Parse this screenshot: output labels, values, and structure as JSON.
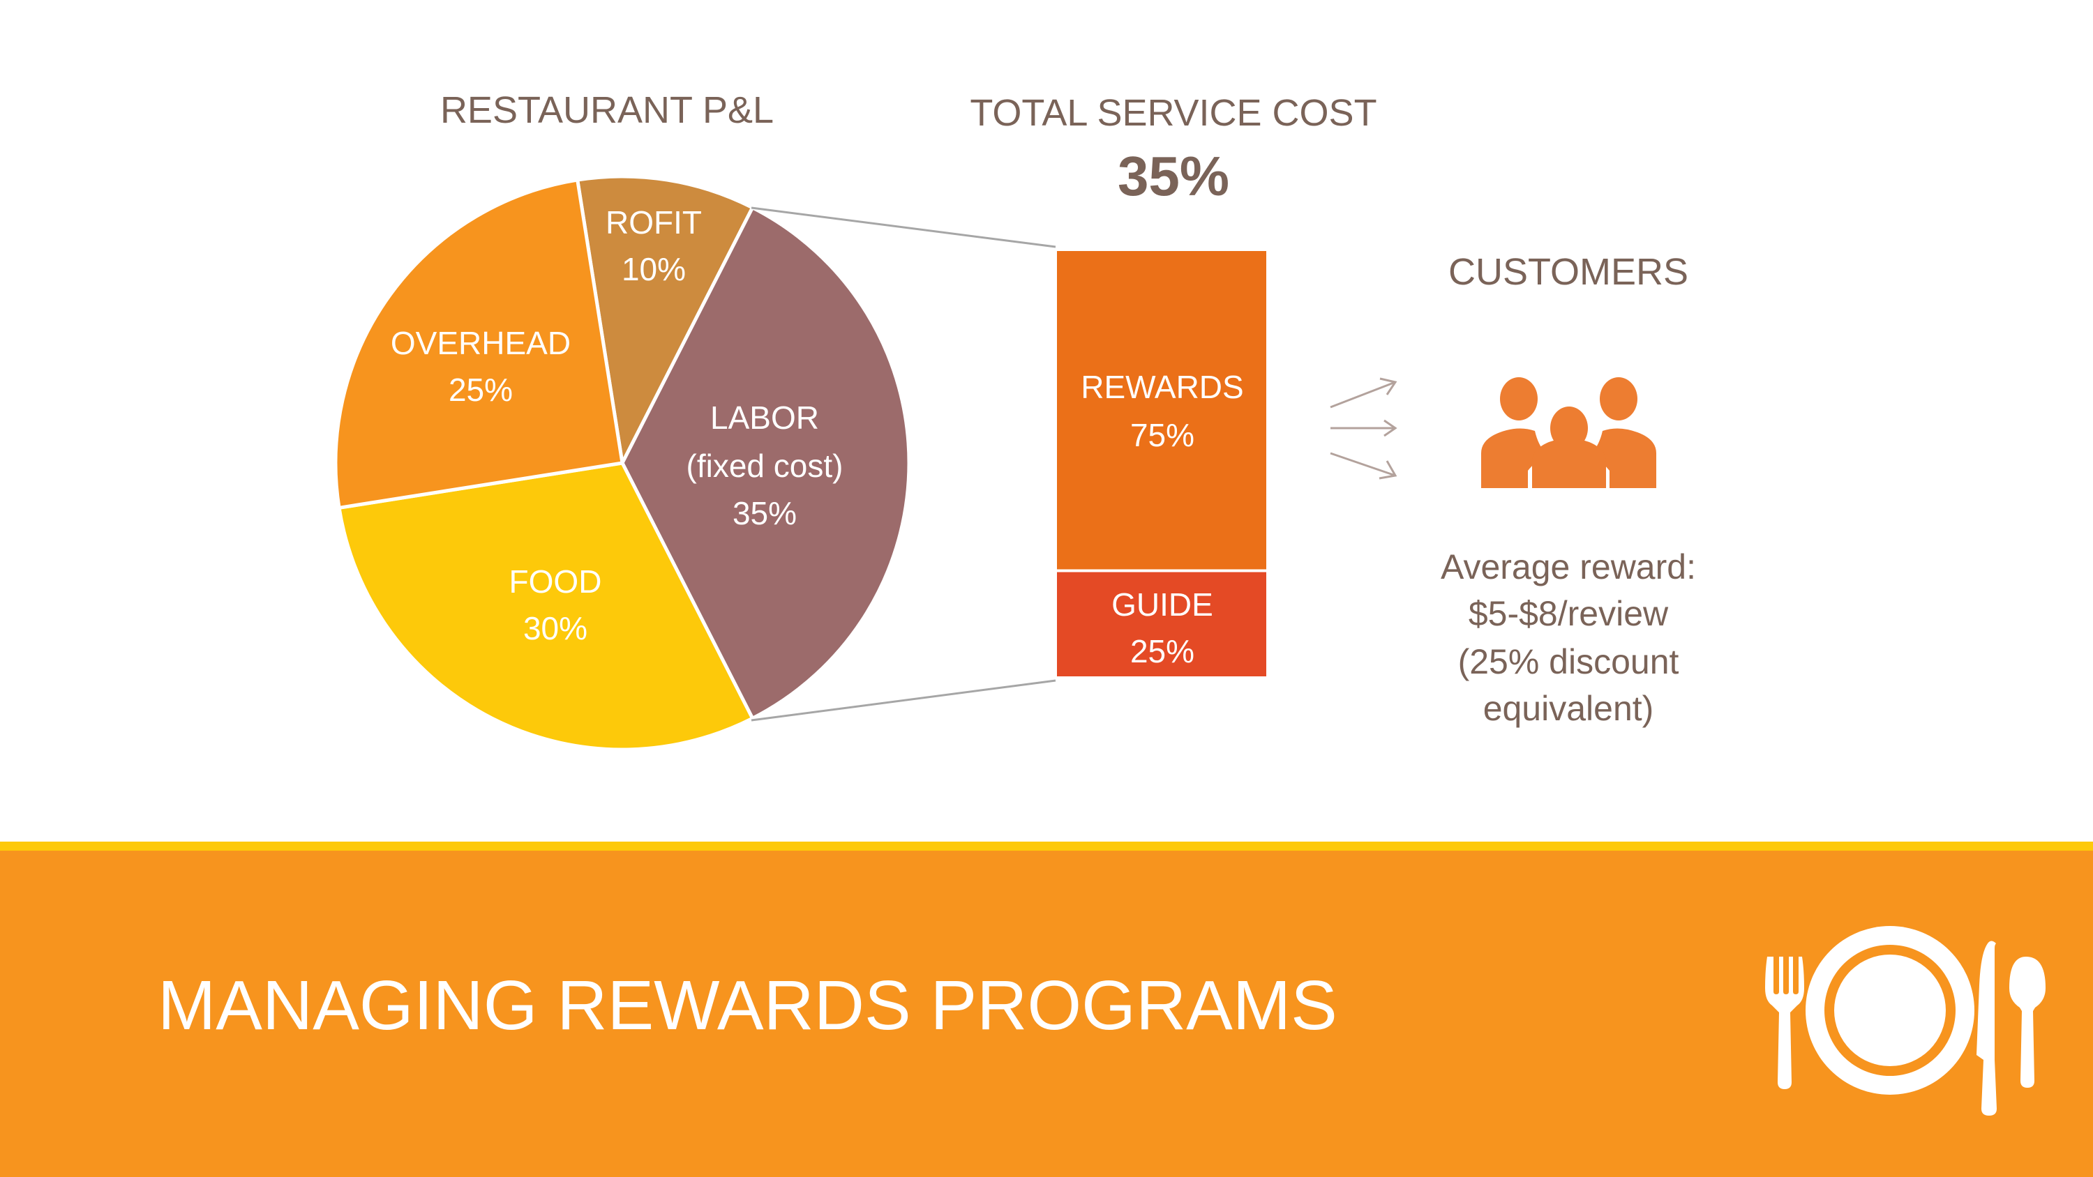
{
  "chart_data": [
    {
      "type": "pie",
      "title": "RESTAURANT P&L",
      "slices": [
        {
          "label": "ROFIT",
          "value": 10,
          "value_label": "10%",
          "color": "#cd8b3e"
        },
        {
          "label": "LABOR",
          "sublabel": "(fixed cost)",
          "value": 35,
          "value_label": "35%",
          "color": "#9c6b6b"
        },
        {
          "label": "FOOD",
          "value": 30,
          "value_label": "30%",
          "color": "#fdc90a"
        },
        {
          "label": "OVERHEAD",
          "value": 25,
          "value_label": "25%",
          "color": "#f7941e"
        }
      ]
    },
    {
      "type": "bar",
      "stacked": true,
      "title": "TOTAL SERVICE COST",
      "total_label": "35%",
      "series": [
        {
          "name": "REWARDS",
          "value": 75,
          "value_label": "75%",
          "color": "#eb7018"
        },
        {
          "name": "GUIDE",
          "value": 25,
          "value_label": "25%",
          "color": "#e44a25"
        }
      ]
    }
  ],
  "customers": {
    "title": "CUSTOMERS",
    "icon": "people-group-icon",
    "icon_color": "#ed7d31",
    "lines": [
      "Average reward:",
      "$5-$8/review",
      "(25% discount",
      "equivalent)"
    ]
  },
  "footer": {
    "title": "MANAGING REWARDS PROGRAMS",
    "icon": "place-setting-icon",
    "band_color": "#f7941e",
    "stripe_color": "#fdc90a"
  }
}
